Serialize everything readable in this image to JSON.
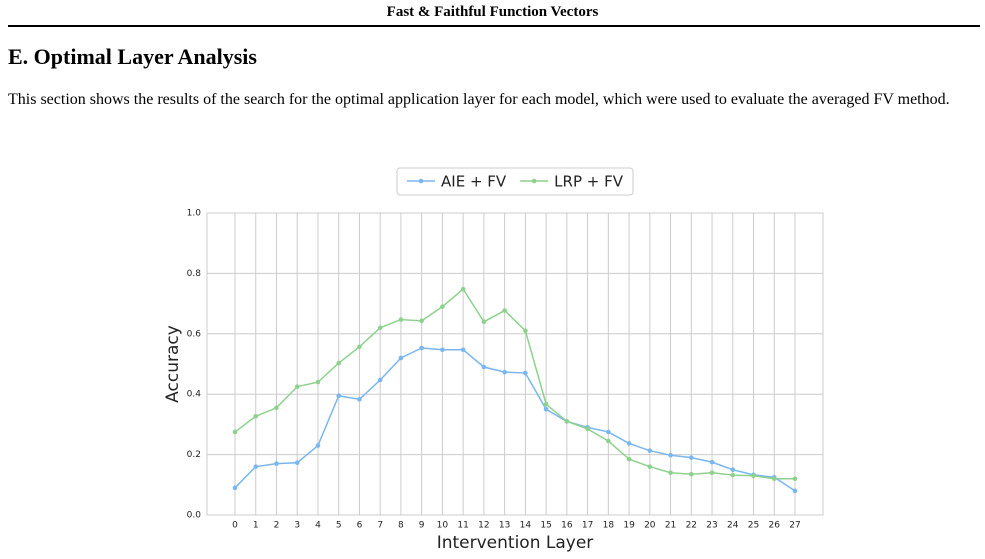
{
  "header": {
    "title": "Fast & Faithful Function Vectors"
  },
  "section": {
    "title": "E. Optimal Layer Analysis",
    "text": "This section shows the results of the search for the optimal application layer for each model, which were used to evaluate the averaged FV method."
  },
  "chart_data": {
    "type": "line",
    "x_label": "Intervention Layer",
    "y_label": "Accuracy",
    "categories": [
      "0",
      "1",
      "2",
      "3",
      "4",
      "5",
      "6",
      "7",
      "8",
      "9",
      "10",
      "11",
      "12",
      "13",
      "14",
      "15",
      "16",
      "17",
      "18",
      "19",
      "20",
      "21",
      "22",
      "23",
      "24",
      "25",
      "26",
      "27"
    ],
    "series": [
      {
        "name": "AIE + FV",
        "color": "#7ab6f0",
        "values": [
          0.09,
          0.16,
          0.17,
          0.173,
          0.23,
          0.395,
          0.383,
          0.447,
          0.52,
          0.553,
          0.547,
          0.547,
          0.49,
          0.473,
          0.47,
          0.35,
          0.31,
          0.29,
          0.275,
          0.237,
          0.213,
          0.198,
          0.19,
          0.175,
          0.15,
          0.133,
          0.125,
          0.08
        ]
      },
      {
        "name": "LRP + FV",
        "color": "#8ed18e",
        "values": [
          0.275,
          0.327,
          0.355,
          0.425,
          0.44,
          0.503,
          0.557,
          0.62,
          0.647,
          0.643,
          0.69,
          0.748,
          0.64,
          0.677,
          0.61,
          0.367,
          0.31,
          0.285,
          0.245,
          0.185,
          0.16,
          0.14,
          0.135,
          0.14,
          0.132,
          0.13,
          0.12,
          0.12
        ]
      }
    ],
    "ylim": [
      0,
      1
    ],
    "yticks": [
      {
        "value": 0,
        "label": "0.0"
      },
      {
        "value": 0.2,
        "label": "0.2"
      },
      {
        "value": 0.4,
        "label": "0.4"
      },
      {
        "value": 0.6,
        "label": "0.6"
      },
      {
        "value": 0.8,
        "label": "0.8"
      },
      {
        "value": 1,
        "label": "1.0"
      }
    ],
    "grid": true,
    "legend": "top"
  }
}
